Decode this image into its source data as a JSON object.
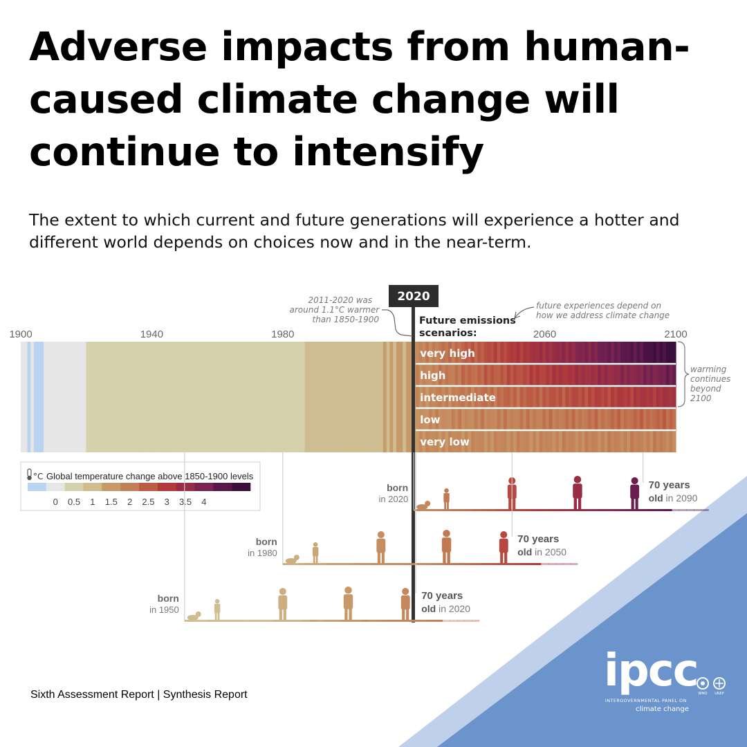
{
  "headline": "Adverse impacts from human-caused climate change will continue to intensify",
  "subtitle": "The extent to which current and future generations will experience a hotter and different world depends on choices now and in the near-term.",
  "footer": "Sixth Assessment Report | Synthesis Report",
  "logo": {
    "wordmark": "ipcc",
    "line1": "INTERGOVERNMENTAL PANEL ON",
    "line2": "climate change",
    "partner1": "WMO",
    "partner2": "UNEP"
  },
  "colors": {
    "triangle_light": "#bfd0ea",
    "triangle_dark": "#6b93cc",
    "label_year_bg": "#2d2d2d",
    "scale": [
      "#b8d4f0",
      "#e6e6e6",
      "#d5d1ac",
      "#cfbd92",
      "#c79a6a",
      "#c27f55",
      "#bc5c45",
      "#b03a3c",
      "#982e45",
      "#7a2450",
      "#58174b",
      "#3a0f3c"
    ]
  },
  "chart_data": {
    "type": "heatmap",
    "description_title": "",
    "x_axis_ticks": [
      "1900",
      "1940",
      "1980",
      "2060",
      "2100"
    ],
    "x_range": [
      1900,
      2100
    ],
    "highlight_year_label": "2020",
    "annotations": {
      "past": "2011-2020 was around 1.1°C warmer than 1850-1900",
      "future": "future experiences depend on how we address climate change",
      "beyond": "warming continues beyond 2100"
    },
    "scenarios_heading": "Future emissions scenarios:",
    "scenarios": [
      {
        "name": "very high",
        "end_value": 4.4
      },
      {
        "name": "high",
        "end_value": 3.6
      },
      {
        "name": "intermediate",
        "end_value": 2.7
      },
      {
        "name": "low",
        "end_value": 1.8
      },
      {
        "name": "very low",
        "end_value": 1.4
      }
    ],
    "observed_anomalies": [
      0.1,
      0.1,
      -0.2,
      0.1,
      -0.3,
      -0.3,
      -0.3,
      0.1,
      -0.1,
      0.1,
      0.1,
      -0.1,
      0.1,
      0.1,
      0.1,
      0.1,
      0.0,
      0.1,
      0.0,
      0.2,
      0.3,
      0.3,
      0.4,
      0.4,
      0.4,
      0.3,
      0.5,
      0.5,
      0.4,
      0.5,
      0.5,
      0.4,
      0.5,
      0.5,
      0.4,
      0.4,
      0.5,
      0.5,
      0.6,
      0.5,
      0.6,
      0.6,
      0.5,
      0.5,
      0.5,
      0.4,
      0.5,
      0.5,
      0.4,
      0.5,
      0.5,
      0.4,
      0.4,
      0.5,
      0.4,
      0.4,
      0.5,
      0.5,
      0.4,
      0.5,
      0.5,
      0.5,
      0.5,
      0.4,
      0.5,
      0.5,
      0.5,
      0.5,
      0.4,
      0.5,
      0.5,
      0.5,
      0.6,
      0.5,
      0.5,
      0.5,
      0.5,
      0.6,
      0.6,
      0.6,
      0.7,
      0.7,
      0.6,
      0.7,
      0.6,
      0.7,
      0.7,
      0.8,
      0.9,
      0.8,
      0.8,
      0.8,
      0.9,
      0.9,
      0.9,
      0.9,
      0.9,
      1.0,
      0.9,
      1.0,
      1.0,
      1.0,
      1.0,
      1.1,
      1.2,
      1.1,
      1.1,
      1.2,
      1.2,
      1.2,
      1.2,
      1.3,
      1.2,
      1.3,
      1.2,
      1.3,
      1.3,
      1.2,
      1.3,
      1.3,
      1.3
    ],
    "legend": {
      "title": "Global temperature change above 1850-1900 levels",
      "unit": "°C",
      "ticks": [
        "0",
        "0.5",
        "1",
        "1.5",
        "2",
        "2.5",
        "3",
        "3.5",
        "4"
      ]
    },
    "generations": [
      {
        "born_label": "born",
        "born_year": "in 2020",
        "birth_year": 2020,
        "age_label": "70 years",
        "age_year_prefix": "old",
        "age_year": "in 2090",
        "end_year": 2090
      },
      {
        "born_label": "born",
        "born_year": "in 1980",
        "birth_year": 1980,
        "age_label": "70 years",
        "age_year_prefix": "old",
        "age_year": "in 2050",
        "end_year": 2050
      },
      {
        "born_label": "born",
        "born_year": "in 1950",
        "birth_year": 1950,
        "age_label": "70 years",
        "age_year_prefix": "old",
        "age_year": "in 2020",
        "end_year": 2020
      }
    ]
  }
}
